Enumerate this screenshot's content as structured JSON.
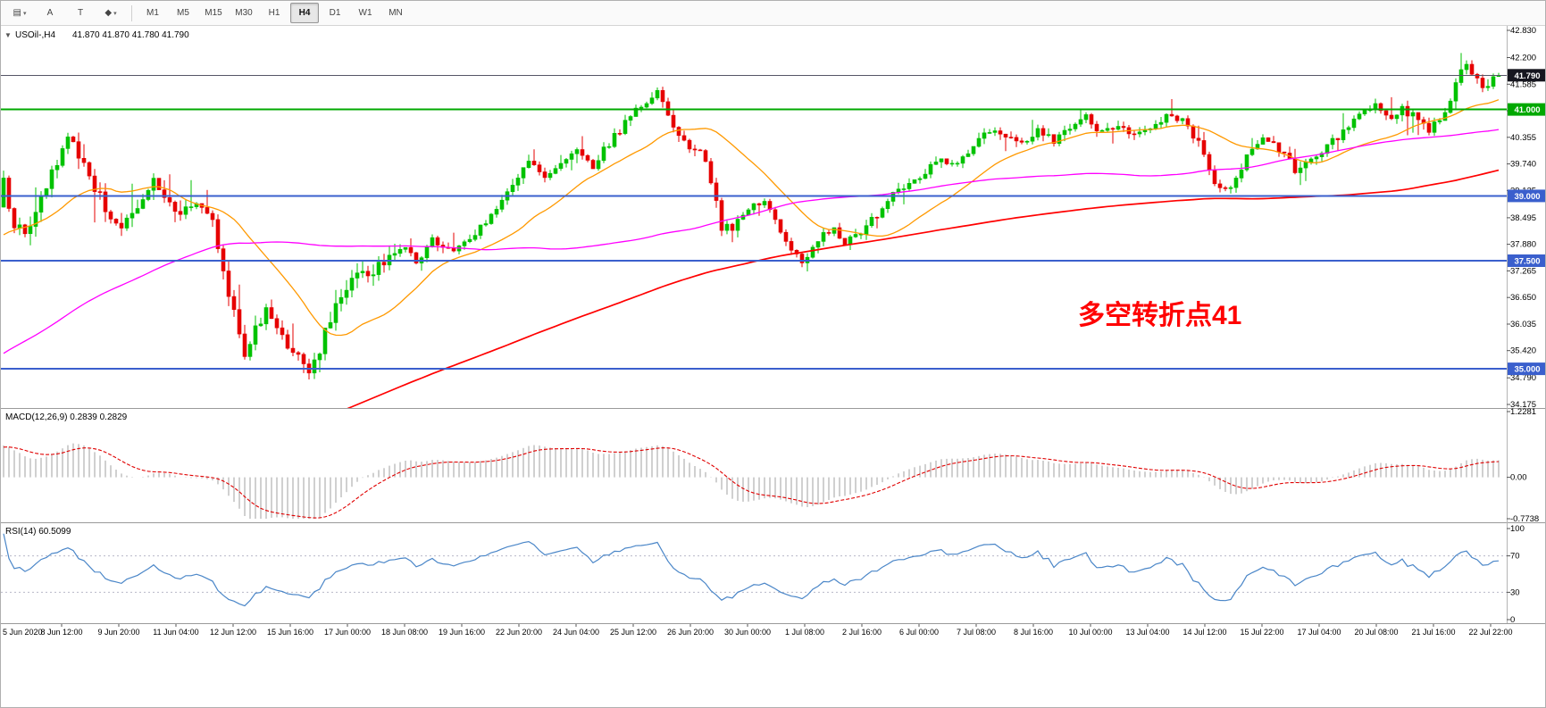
{
  "toolbar": {
    "tools": [
      {
        "name": "chart-template",
        "label": "▤",
        "caret": true
      },
      {
        "name": "arrow-tool",
        "label": "A",
        "caret": false
      },
      {
        "name": "text-tool",
        "label": "T",
        "caret": false
      },
      {
        "name": "shapes-tool",
        "label": "◆",
        "caret": true
      }
    ],
    "caret_icon": "▾",
    "periods": [
      "M1",
      "M5",
      "M15",
      "M30",
      "H1",
      "H4",
      "D1",
      "W1",
      "MN"
    ],
    "selected_period": "H4"
  },
  "chart": {
    "collapse_icon": "▼",
    "title": "USOil-,H4",
    "ohlc": "41.870 41.870 41.780 41.790",
    "annotation": {
      "text": "多空转折点41",
      "color": "#ff0000"
    },
    "price_ticks": [
      "42.830",
      "42.200",
      "41.585",
      "40.970",
      "40.355",
      "39.740",
      "39.125",
      "38.495",
      "37.880",
      "37.265",
      "36.650",
      "36.035",
      "35.420",
      "34.790",
      "34.175"
    ],
    "badges": [
      {
        "value": "41.790",
        "price": 41.79,
        "bg": "#16161f",
        "name": "current-price-badge"
      },
      {
        "value": "41.000",
        "price": 41.0,
        "bg": "#00a800",
        "name": "level-41-badge"
      },
      {
        "value": "39.000",
        "price": 39.0,
        "bg": "#3a5fcd",
        "name": "level-39-badge"
      },
      {
        "value": "37.500",
        "price": 37.5,
        "bg": "#3a5fcd",
        "name": "level-37-5-badge"
      },
      {
        "value": "35.000",
        "price": 35.0,
        "bg": "#3a5fcd",
        "name": "level-35-badge"
      }
    ],
    "hlines": [
      {
        "price": 41.79,
        "color": "#555566",
        "width": 1
      },
      {
        "price": 41.0,
        "color": "#00a800",
        "width": 2
      },
      {
        "price": 39.0,
        "color": "#3a5fcd",
        "width": 2
      },
      {
        "price": 37.5,
        "color": "#3a5fcd",
        "width": 2
      },
      {
        "price": 35.0,
        "color": "#3a5fcd",
        "width": 2
      }
    ]
  },
  "macd": {
    "title": "MACD(12,26,9) 0.2839 0.2829",
    "ticks": [
      "1.2281",
      "0.00",
      "-0.7738"
    ],
    "max": 1.2281,
    "min": -0.7738,
    "histogram_color": "#c4c4c4",
    "signal_color": "#e00000"
  },
  "rsi": {
    "title": "RSI(14) 60.5099",
    "ticks": [
      "100",
      "70",
      "30",
      "0"
    ],
    "levels": [
      70,
      30
    ],
    "line_color": "#4a86c8",
    "last": 60.5099
  },
  "time_axis": [
    "5 Jun 2020",
    "8 Jun 12:00",
    "9 Jun 20:00",
    "11 Jun 04:00",
    "12 Jun 12:00",
    "15 Jun 16:00",
    "17 Jun 00:00",
    "18 Jun 08:00",
    "19 Jun 16:00",
    "22 Jun 20:00",
    "24 Jun 04:00",
    "25 Jun 12:00",
    "26 Jun 20:00",
    "30 Jun 00:00",
    "1 Jul 08:00",
    "2 Jul 16:00",
    "6 Jul 00:00",
    "7 Jul 08:00",
    "8 Jul 16:00",
    "10 Jul 00:00",
    "13 Jul 04:00",
    "14 Jul 12:00",
    "15 Jul 22:00",
    "17 Jul 04:00",
    "20 Jul 08:00",
    "21 Jul 16:00",
    "22 Jul 22:00"
  ],
  "chart_data": {
    "type": "candlestick",
    "symbol": "USOil",
    "timeframe": "H4",
    "n_candles": 280,
    "current_price": 41.79,
    "price_axis": {
      "top_tick": 42.83,
      "bottom_tick": 34.175
    },
    "bull_color": "#00c200",
    "bear_color": "#e60000",
    "price_path": [
      [
        0,
        39.3
      ],
      [
        2,
        38.4
      ],
      [
        4,
        38.0
      ],
      [
        6,
        38.6
      ],
      [
        9,
        39.6
      ],
      [
        12,
        40.3
      ],
      [
        14,
        40.0
      ],
      [
        16,
        39.5
      ],
      [
        19,
        38.7
      ],
      [
        22,
        38.3
      ],
      [
        25,
        38.6
      ],
      [
        28,
        39.3
      ],
      [
        30,
        38.9
      ],
      [
        33,
        38.6
      ],
      [
        36,
        38.9
      ],
      [
        39,
        38.4
      ],
      [
        41,
        37.2
      ],
      [
        43,
        36.3
      ],
      [
        45,
        35.3
      ],
      [
        47,
        35.9
      ],
      [
        49,
        36.4
      ],
      [
        51,
        35.9
      ],
      [
        53,
        35.6
      ],
      [
        55,
        35.2
      ],
      [
        57,
        34.9
      ],
      [
        59,
        35.4
      ],
      [
        61,
        36.2
      ],
      [
        64,
        36.9
      ],
      [
        66,
        37.3
      ],
      [
        68,
        37.0
      ],
      [
        71,
        37.5
      ],
      [
        74,
        37.9
      ],
      [
        77,
        37.5
      ],
      [
        80,
        38.0
      ],
      [
        83,
        37.7
      ],
      [
        86,
        37.9
      ],
      [
        89,
        38.3
      ],
      [
        92,
        38.7
      ],
      [
        95,
        39.2
      ],
      [
        98,
        39.8
      ],
      [
        101,
        39.4
      ],
      [
        104,
        39.7
      ],
      [
        107,
        40.0
      ],
      [
        110,
        39.7
      ],
      [
        113,
        40.2
      ],
      [
        116,
        40.7
      ],
      [
        119,
        41.1
      ],
      [
        122,
        41.4
      ],
      [
        124,
        40.9
      ],
      [
        127,
        40.2
      ],
      [
        130,
        40.1
      ],
      [
        132,
        39.4
      ],
      [
        134,
        38.3
      ],
      [
        136,
        38.2
      ],
      [
        139,
        38.7
      ],
      [
        142,
        38.9
      ],
      [
        144,
        38.4
      ],
      [
        146,
        37.9
      ],
      [
        149,
        37.5
      ],
      [
        152,
        38.0
      ],
      [
        155,
        38.3
      ],
      [
        157,
        37.9
      ],
      [
        160,
        38.1
      ],
      [
        163,
        38.6
      ],
      [
        166,
        39.1
      ],
      [
        169,
        39.3
      ],
      [
        172,
        39.6
      ],
      [
        175,
        39.9
      ],
      [
        178,
        39.7
      ],
      [
        181,
        40.1
      ],
      [
        184,
        40.5
      ],
      [
        187,
        40.3
      ],
      [
        190,
        40.2
      ],
      [
        193,
        40.5
      ],
      [
        196,
        40.3
      ],
      [
        199,
        40.6
      ],
      [
        202,
        40.8
      ],
      [
        205,
        40.5
      ],
      [
        208,
        40.7
      ],
      [
        211,
        40.4
      ],
      [
        214,
        40.5
      ],
      [
        217,
        40.8
      ],
      [
        220,
        40.7
      ],
      [
        223,
        40.2
      ],
      [
        226,
        39.3
      ],
      [
        229,
        39.1
      ],
      [
        232,
        39.9
      ],
      [
        235,
        40.3
      ],
      [
        238,
        40.1
      ],
      [
        241,
        39.6
      ],
      [
        244,
        39.8
      ],
      [
        247,
        40.1
      ],
      [
        250,
        40.5
      ],
      [
        253,
        40.9
      ],
      [
        256,
        41.1
      ],
      [
        258,
        40.8
      ],
      [
        261,
        41.0
      ],
      [
        264,
        40.8
      ],
      [
        266,
        40.5
      ],
      [
        268,
        40.8
      ],
      [
        270,
        41.2
      ],
      [
        272,
        42.0
      ],
      [
        274,
        41.9
      ],
      [
        276,
        41.5
      ],
      [
        278,
        41.7
      ],
      [
        279,
        41.79
      ]
    ],
    "pre_path": [
      [
        -300,
        20.0
      ],
      [
        -250,
        21.0
      ],
      [
        -200,
        23.0
      ],
      [
        -150,
        26.0
      ],
      [
        -100,
        31.0
      ],
      [
        -60,
        34.0
      ],
      [
        -30,
        36.5
      ],
      [
        -1,
        38.8
      ]
    ],
    "indicators": {
      "ma": [
        {
          "period": 21,
          "color": "#ff9900",
          "width": 1.3
        },
        {
          "period": 89,
          "color": "#ff00ff",
          "width": 1.3
        },
        {
          "period": 220,
          "color": "#ff0000",
          "width": 1.7
        }
      ],
      "macd": {
        "fast": 12,
        "slow": 26,
        "signal": 9
      },
      "rsi": {
        "period": 14
      }
    }
  }
}
